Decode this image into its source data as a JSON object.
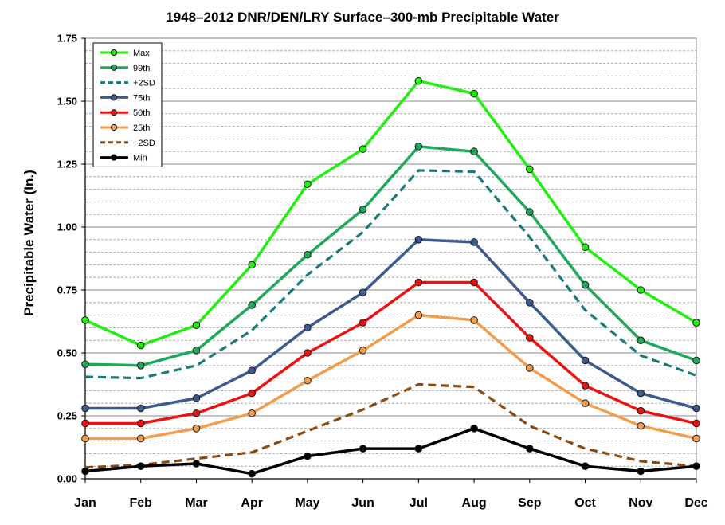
{
  "chart_data": {
    "type": "line",
    "title": "1948–2012 DNR/DEN/LRY Surface–300-mb Precipitable Water",
    "xlabel": "",
    "ylabel": "Precipitable Water (In.)",
    "ylim": [
      0,
      1.75
    ],
    "yticks": [
      "0.00",
      "0.25",
      "0.50",
      "0.75",
      "1.00",
      "1.25",
      "1.50",
      "1.75"
    ],
    "grid": "dashed horizontal every 0.05, solid at 0.25 intervals",
    "legend_position": "top-left",
    "categories": [
      "Jan",
      "Feb",
      "Mar",
      "Apr",
      "May",
      "Jun",
      "Jul",
      "Aug",
      "Sep",
      "Oct",
      "Nov",
      "Dec"
    ],
    "series": [
      {
        "name": "Max",
        "color": "#22ee11",
        "dash": false,
        "markers": true,
        "values": [
          0.63,
          0.53,
          0.61,
          0.85,
          1.17,
          1.31,
          1.58,
          1.53,
          1.23,
          0.92,
          0.75,
          0.62
        ]
      },
      {
        "name": "99th",
        "color": "#1ea85a",
        "dash": false,
        "markers": true,
        "values": [
          0.455,
          0.45,
          0.51,
          0.69,
          0.89,
          1.07,
          1.32,
          1.3,
          1.06,
          0.77,
          0.55,
          0.47
        ]
      },
      {
        "name": "+2SD",
        "color": "#1a7a78",
        "dash": true,
        "markers": false,
        "values": [
          0.405,
          0.4,
          0.45,
          0.59,
          0.81,
          0.98,
          1.225,
          1.22,
          0.96,
          0.67,
          0.49,
          0.41
        ]
      },
      {
        "name": "75th",
        "color": "#3d5a8e",
        "dash": false,
        "markers": true,
        "values": [
          0.28,
          0.28,
          0.32,
          0.43,
          0.6,
          0.74,
          0.95,
          0.94,
          0.7,
          0.47,
          0.34,
          0.28
        ]
      },
      {
        "name": "50th",
        "color": "#ee1111",
        "dash": false,
        "markers": true,
        "values": [
          0.22,
          0.22,
          0.26,
          0.34,
          0.5,
          0.62,
          0.78,
          0.78,
          0.56,
          0.37,
          0.27,
          0.22
        ]
      },
      {
        "name": "25th",
        "color": "#f29c4c",
        "dash": false,
        "markers": true,
        "values": [
          0.16,
          0.16,
          0.2,
          0.26,
          0.39,
          0.51,
          0.65,
          0.63,
          0.44,
          0.3,
          0.21,
          0.16
        ]
      },
      {
        "name": "-2SD",
        "color": "#8b4a10",
        "dash": true,
        "markers": false,
        "values": [
          0.045,
          0.055,
          0.08,
          0.105,
          0.19,
          0.275,
          0.375,
          0.365,
          0.21,
          0.12,
          0.07,
          0.05
        ]
      },
      {
        "name": "Min",
        "color": "#000000",
        "dash": false,
        "markers": true,
        "values": [
          0.03,
          0.05,
          0.06,
          0.02,
          0.09,
          0.12,
          0.12,
          0.2,
          0.12,
          0.05,
          0.03,
          0.05
        ]
      }
    ]
  },
  "legend": {
    "labels": [
      "Max",
      "99th",
      "+2SD",
      "75th",
      "50th",
      "25th",
      "−2SD",
      "Min"
    ]
  }
}
